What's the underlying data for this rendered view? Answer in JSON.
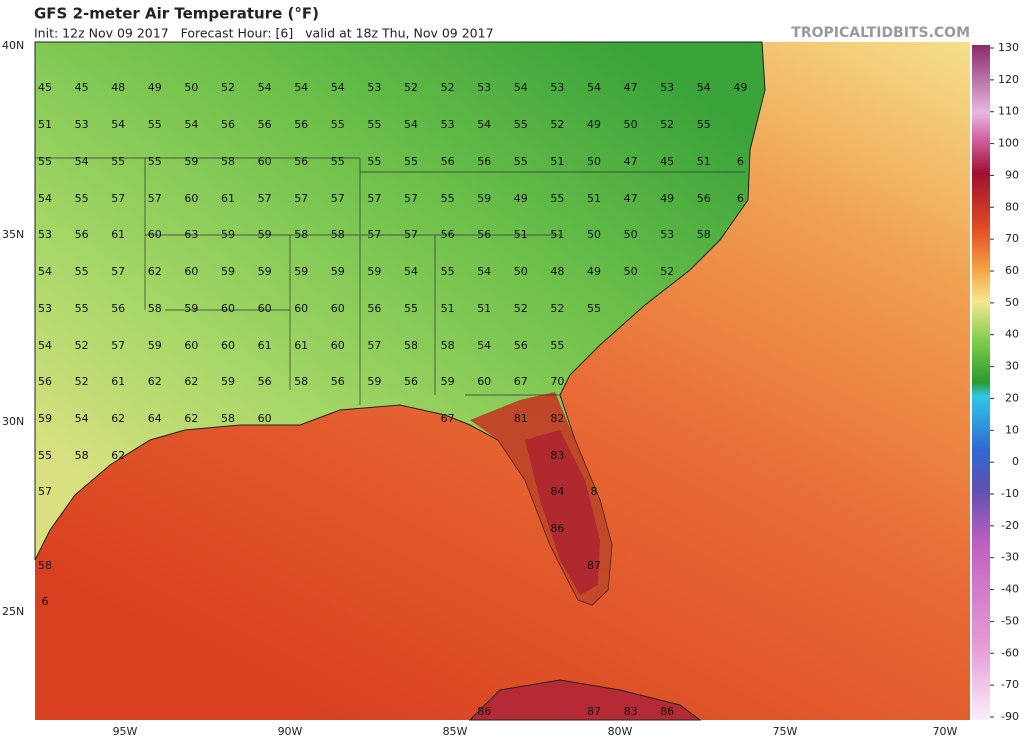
{
  "header": {
    "title": "GFS 2-meter Air Temperature (°F)",
    "subtitle": "Init: 12z Nov 09 2017   Forecast Hour: [6]   valid at 18z Thu, Nov 09 2017",
    "credit": "TROPICALTIDBITS.COM"
  },
  "lat_labels": [
    "40N",
    "35N",
    "30N",
    "25N"
  ],
  "lon_labels": [
    "95W",
    "90W",
    "85W",
    "80W",
    "75W",
    "70W"
  ],
  "colorbar_ticks": [
    130,
    120,
    110,
    100,
    90,
    80,
    70,
    60,
    50,
    40,
    30,
    20,
    10,
    0,
    -10,
    -20,
    -30,
    -40,
    -50,
    -60,
    -70,
    -90
  ],
  "station_values": [
    [
      45,
      45,
      48,
      49,
      50,
      52,
      54,
      54,
      54,
      53,
      52,
      52,
      53,
      54,
      53,
      54,
      47,
      53,
      54,
      49
    ],
    [
      51,
      53,
      54,
      55,
      54,
      56,
      56,
      56,
      55,
      55,
      54,
      53,
      54,
      55,
      52,
      49,
      50,
      52,
      55
    ],
    [
      55,
      54,
      55,
      55,
      59,
      58,
      60,
      56,
      55,
      55,
      55,
      56,
      56,
      55,
      51,
      50,
      47,
      45,
      51,
      6
    ],
    [
      54,
      55,
      57,
      57,
      60,
      61,
      57,
      57,
      57,
      57,
      57,
      55,
      59,
      49,
      55,
      51,
      47,
      49,
      56,
      6
    ],
    [
      53,
      56,
      61,
      60,
      63,
      59,
      59,
      58,
      58,
      57,
      57,
      56,
      56,
      51,
      51,
      50,
      50,
      53,
      58
    ],
    [
      54,
      55,
      57,
      62,
      60,
      59,
      59,
      59,
      59,
      59,
      54,
      55,
      54,
      50,
      48,
      49,
      50,
      52
    ],
    [
      53,
      55,
      56,
      58,
      59,
      60,
      60,
      60,
      60,
      56,
      55,
      51,
      51,
      52,
      52,
      55
    ],
    [
      54,
      52,
      57,
      59,
      60,
      60,
      61,
      61,
      60,
      57,
      58,
      58,
      54,
      56,
      55
    ],
    [
      56,
      52,
      61,
      62,
      62,
      59,
      56,
      58,
      56,
      59,
      56,
      59,
      60,
      67,
      70
    ],
    [
      59,
      54,
      62,
      64,
      62,
      58,
      60,
      67,
      81,
      82
    ],
    [
      55,
      58,
      62,
      83
    ],
    [
      57,
      84,
      8
    ],
    [
      86
    ],
    [
      58,
      87
    ],
    [
      6
    ],
    [
      86,
      87,
      83,
      86
    ]
  ]
}
